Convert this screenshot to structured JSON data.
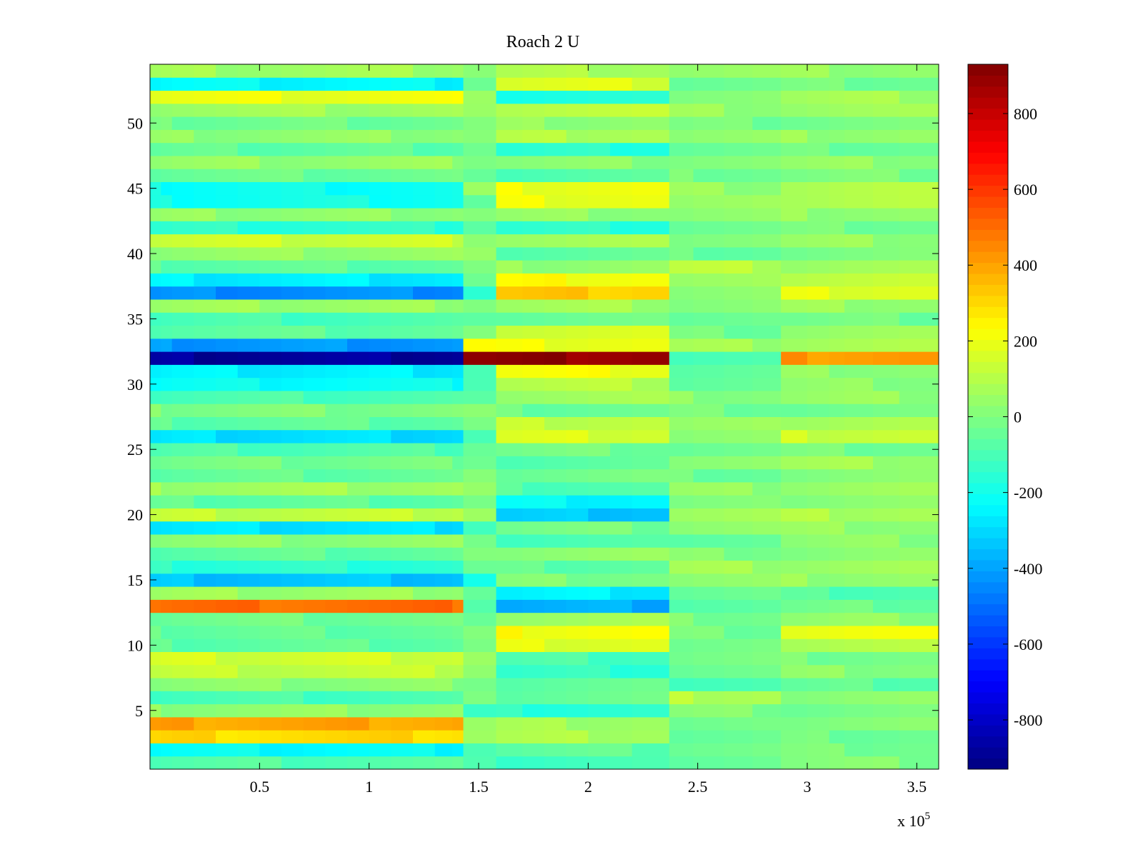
{
  "chart_data": {
    "type": "heatmap",
    "title": "Roach 2 U",
    "xlabel": "",
    "ylabel": "",
    "x_exponent_label": {
      "base": "x 10",
      "exponent": "5"
    },
    "xlim": [
      0,
      3.6
    ],
    "ylim": [
      0.5,
      54.5
    ],
    "x_ticks": [
      {
        "value": 0.5,
        "label": "0.5"
      },
      {
        "value": 1,
        "label": "1"
      },
      {
        "value": 1.5,
        "label": "1.5"
      },
      {
        "value": 2,
        "label": "2"
      },
      {
        "value": 2.5,
        "label": "2.5"
      },
      {
        "value": 3,
        "label": "3"
      },
      {
        "value": 3.5,
        "label": "3.5"
      }
    ],
    "y_ticks": [
      {
        "value": 5,
        "label": "5"
      },
      {
        "value": 10,
        "label": "10"
      },
      {
        "value": 15,
        "label": "15"
      },
      {
        "value": 20,
        "label": "20"
      },
      {
        "value": 25,
        "label": "25"
      },
      {
        "value": 30,
        "label": "30"
      },
      {
        "value": 35,
        "label": "35"
      },
      {
        "value": 40,
        "label": "40"
      },
      {
        "value": 45,
        "label": "45"
      },
      {
        "value": 50,
        "label": "50"
      }
    ],
    "x_segments": [
      0,
      0.05,
      0.1,
      0.2,
      0.3,
      0.4,
      0.5,
      0.6,
      0.7,
      0.8,
      0.9,
      1.0,
      1.1,
      1.2,
      1.3,
      1.38,
      1.43,
      1.58,
      1.7,
      1.8,
      1.9,
      2.0,
      2.1,
      2.2,
      2.37,
      2.48,
      2.62,
      2.75,
      2.88,
      3.0,
      3.1,
      3.17,
      3.3,
      3.42,
      3.6
    ],
    "row_values": [
      {
        "y": 1,
        "regimes": [
          -80,
          -120,
          -30,
          0
        ]
      },
      {
        "y": 2,
        "regimes": [
          -230,
          -60,
          -20,
          -10
        ]
      },
      {
        "y": 3,
        "regimes": [
          300,
          80,
          -50,
          -30
        ]
      },
      {
        "y": 4,
        "regimes": [
          400,
          60,
          -40,
          20
        ]
      },
      {
        "y": 5,
        "regimes": [
          30,
          -150,
          0,
          -20
        ]
      },
      {
        "y": 6,
        "regimes": [
          -100,
          -40,
          100,
          10
        ]
      },
      {
        "y": 7,
        "regimes": [
          20,
          -60,
          -90,
          -60
        ]
      },
      {
        "y": 8,
        "regimes": [
          120,
          -140,
          -30,
          20
        ]
      },
      {
        "y": 9,
        "regimes": [
          150,
          -100,
          -20,
          -10
        ]
      },
      {
        "y": 10,
        "regimes": [
          -60,
          180,
          -40,
          100
        ]
      },
      {
        "y": 11,
        "regimes": [
          -50,
          220,
          -20,
          200
        ]
      },
      {
        "y": 12,
        "regimes": [
          -30,
          60,
          -10,
          30
        ]
      },
      {
        "y": 13,
        "regimes": [
          500,
          -380,
          -60,
          -40
        ]
      },
      {
        "y": 14,
        "regimes": [
          50,
          -260,
          -40,
          -80
        ]
      },
      {
        "y": 15,
        "regimes": [
          -340,
          0,
          20,
          40
        ]
      },
      {
        "y": 16,
        "regimes": [
          -150,
          -60,
          60,
          60
        ]
      },
      {
        "y": 17,
        "regimes": [
          -60,
          40,
          0,
          10
        ]
      },
      {
        "y": 18,
        "regimes": [
          30,
          -100,
          -40,
          20
        ]
      },
      {
        "y": 19,
        "regimes": [
          -280,
          -20,
          40,
          40
        ]
      },
      {
        "y": 20,
        "regimes": [
          120,
          -330,
          60,
          80
        ]
      },
      {
        "y": 21,
        "regimes": [
          -60,
          -240,
          -10,
          30
        ]
      },
      {
        "y": 22,
        "regimes": [
          60,
          -80,
          30,
          50
        ]
      },
      {
        "y": 23,
        "regimes": [
          -50,
          -20,
          -30,
          0
        ]
      },
      {
        "y": 24,
        "regimes": [
          -20,
          -80,
          40,
          60
        ]
      },
      {
        "y": 25,
        "regimes": [
          -90,
          -20,
          -30,
          -20
        ]
      },
      {
        "y": 26,
        "regimes": [
          -290,
          160,
          20,
          140
        ]
      },
      {
        "y": 27,
        "regimes": [
          -60,
          120,
          30,
          80
        ]
      },
      {
        "y": 28,
        "regimes": [
          0,
          -40,
          -20,
          -30
        ]
      },
      {
        "y": 29,
        "regimes": [
          -100,
          60,
          20,
          40
        ]
      },
      {
        "y": 30,
        "regimes": [
          -220,
          100,
          -40,
          20
        ]
      },
      {
        "y": 31,
        "regimes": [
          -260,
          210,
          -60,
          30
        ]
      },
      {
        "y": 32,
        "regimes": [
          -880,
          900,
          -110,
          420
        ]
      },
      {
        "y": 33,
        "regimes": [
          -420,
          200,
          60,
          80
        ]
      },
      {
        "y": 34,
        "regimes": [
          -60,
          160,
          -30,
          40
        ]
      },
      {
        "y": 35,
        "regimes": [
          -100,
          -40,
          -20,
          -30
        ]
      },
      {
        "y": 36,
        "regimes": [
          50,
          60,
          20,
          50
        ]
      },
      {
        "y": 37,
        "regimes": [
          -440,
          330,
          20,
          180
        ]
      },
      {
        "y": 38,
        "regimes": [
          -260,
          220,
          40,
          130
        ]
      },
      {
        "y": 39,
        "regimes": [
          -60,
          40,
          100,
          60
        ]
      },
      {
        "y": 40,
        "regimes": [
          40,
          -60,
          -40,
          -20
        ]
      },
      {
        "y": 41,
        "regimes": [
          140,
          60,
          20,
          40
        ]
      },
      {
        "y": 42,
        "regimes": [
          -150,
          -150,
          -30,
          -20
        ]
      },
      {
        "y": 43,
        "regimes": [
          30,
          30,
          20,
          40
        ]
      },
      {
        "y": 44,
        "regimes": [
          -200,
          200,
          30,
          100
        ]
      },
      {
        "y": 45,
        "regimes": [
          -210,
          200,
          40,
          90
        ]
      },
      {
        "y": 46,
        "regimes": [
          -40,
          -80,
          -20,
          -10
        ]
      },
      {
        "y": 47,
        "regimes": [
          40,
          20,
          20,
          30
        ]
      },
      {
        "y": 48,
        "regimes": [
          -60,
          -160,
          -40,
          -30
        ]
      },
      {
        "y": 49,
        "regimes": [
          30,
          90,
          20,
          40
        ]
      },
      {
        "y": 50,
        "regimes": [
          -30,
          30,
          -20,
          -10
        ]
      },
      {
        "y": 51,
        "regimes": [
          60,
          120,
          40,
          50
        ]
      },
      {
        "y": 52,
        "regimes": [
          200,
          -180,
          30,
          60
        ]
      },
      {
        "y": 53,
        "regimes": [
          -240,
          170,
          -30,
          -20
        ]
      },
      {
        "y": 54,
        "regimes": [
          60,
          80,
          40,
          40
        ]
      }
    ],
    "regime_bounds": [
      0,
      1.43,
      1.58,
      2.37,
      2.88,
      3.6
    ],
    "transition": {
      "x": [
        1.43,
        1.58
      ],
      "row_values": {
        "1": -60,
        "3": 60,
        "4": 40,
        "5": -150,
        "13": -60,
        "14": -40,
        "15": -200,
        "20": 60,
        "32": 900,
        "33": 220,
        "37": -150,
        "38": -40,
        "45": 30,
        "52": 80,
        "53": -20
      }
    },
    "colormap": "jet",
    "colorbar": {
      "clim": [
        -930,
        930
      ],
      "ticks": [
        {
          "value": -800,
          "label": "-800"
        },
        {
          "value": -600,
          "label": "-600"
        },
        {
          "value": -400,
          "label": "-400"
        },
        {
          "value": -200,
          "label": "-200"
        },
        {
          "value": 0,
          "label": "0"
        },
        {
          "value": 200,
          "label": "200"
        },
        {
          "value": 400,
          "label": "400"
        },
        {
          "value": 600,
          "label": "600"
        },
        {
          "value": 800,
          "label": "800"
        }
      ]
    },
    "grid": false,
    "legend": "none"
  }
}
